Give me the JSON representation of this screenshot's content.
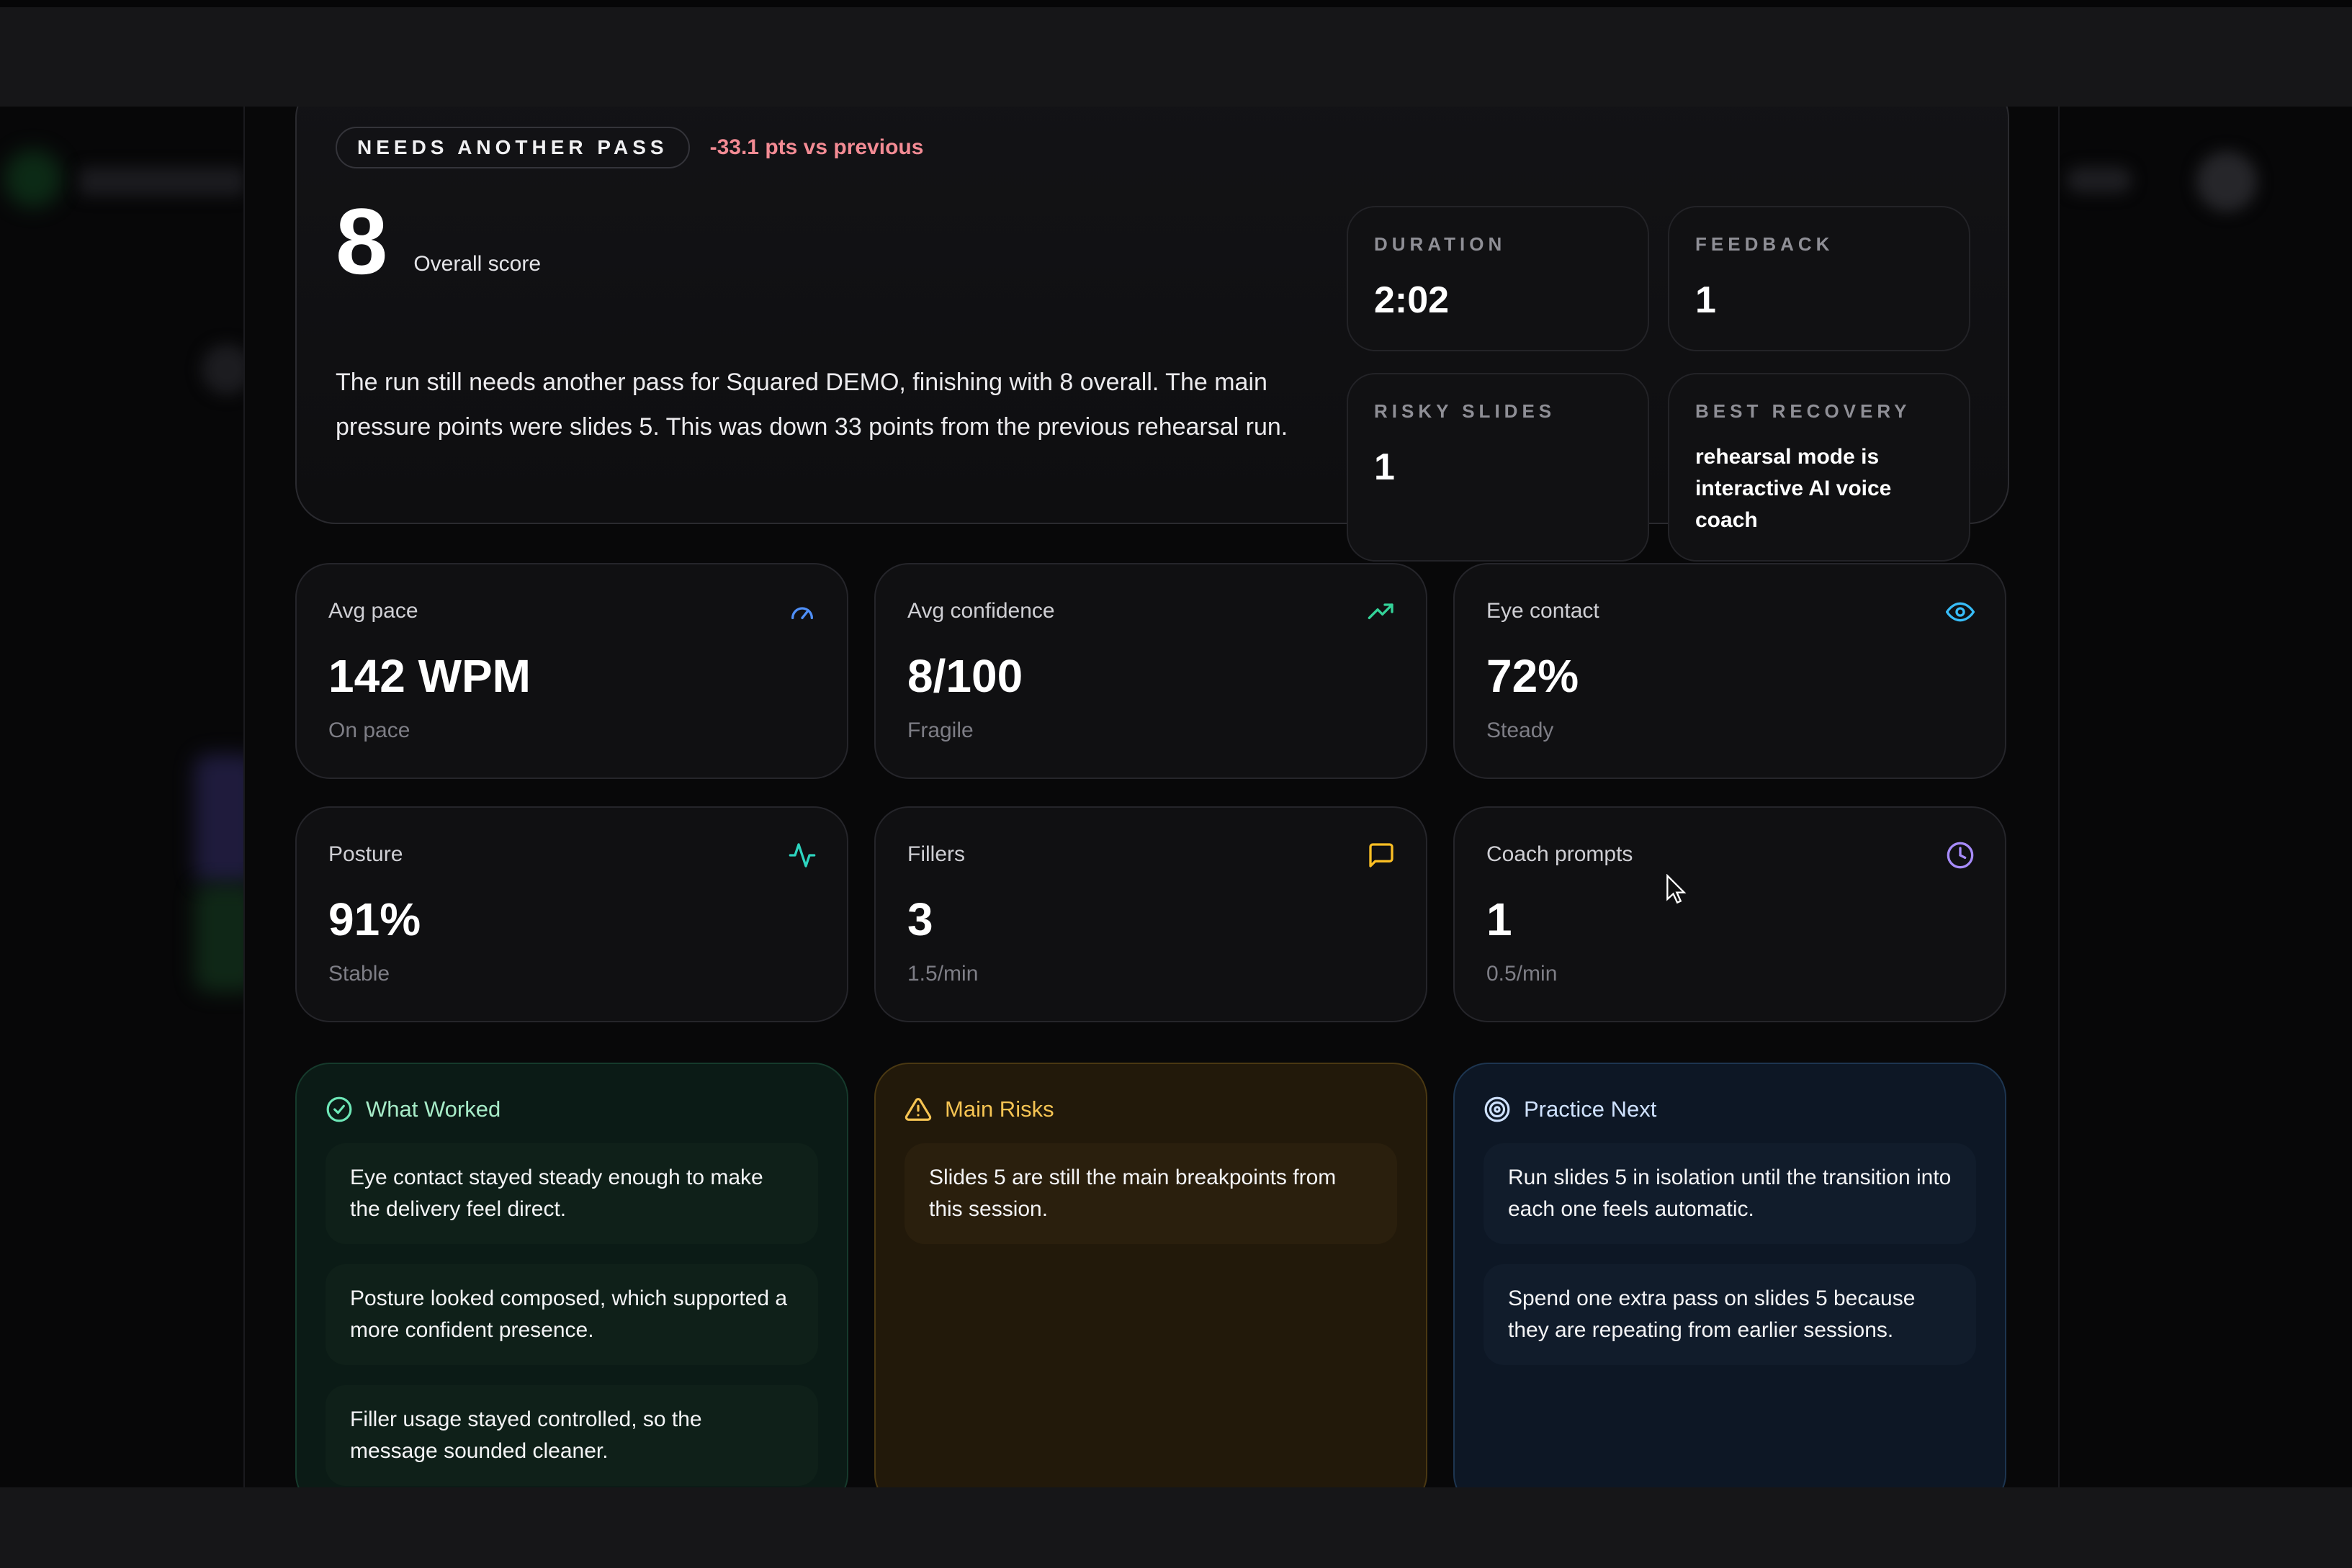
{
  "summary": {
    "status": "NEEDS ANOTHER PASS",
    "delta": "-33.1 pts vs previous",
    "score": "8",
    "score_label": "Overall score",
    "text": "The run still needs another pass for Squared DEMO, finishing with 8 overall. The main pressure points were slides 5. This was down 33 points from the previous rehearsal run.",
    "stats": [
      {
        "key": "DURATION",
        "value": "2:02"
      },
      {
        "key": "FEEDBACK",
        "value": "1"
      },
      {
        "key": "RISKY SLIDES",
        "value": "1"
      },
      {
        "key": "BEST RECOVERY",
        "value": "rehearsal mode is interactive AI voice coach"
      }
    ]
  },
  "metrics": [
    {
      "label": "Avg pace",
      "value": "142 WPM",
      "sub": "On pace",
      "icon": "gauge-icon",
      "color": "#4f8ff7"
    },
    {
      "label": "Avg confidence",
      "value": "8/100",
      "sub": "Fragile",
      "icon": "trending-up-icon",
      "color": "#34d399"
    },
    {
      "label": "Eye contact",
      "value": "72%",
      "sub": "Steady",
      "icon": "eye-icon",
      "color": "#38bdf8"
    },
    {
      "label": "Posture",
      "value": "91%",
      "sub": "Stable",
      "icon": "activity-icon",
      "color": "#2dd4bf"
    },
    {
      "label": "Fillers",
      "value": "3",
      "sub": "1.5/min",
      "icon": "message-square-icon",
      "color": "#fbbf24"
    },
    {
      "label": "Coach prompts",
      "value": "1",
      "sub": "0.5/min",
      "icon": "clock-icon",
      "color": "#a78bfa"
    }
  ],
  "what_worked": {
    "title": "What Worked",
    "items": [
      "Eye contact stayed steady enough to make the delivery feel direct.",
      "Posture looked composed, which supported a more confident presence.",
      "Filler usage stayed controlled, so the message sounded cleaner."
    ]
  },
  "main_risks": {
    "title": "Main Risks",
    "items": [
      "Slides 5 are still the main breakpoints from this session."
    ]
  },
  "practice_next": {
    "title": "Practice Next",
    "items": [
      "Run slides 5 in isolation until the transition into each one feels automatic.",
      "Spend one extra pass on slides 5 because they are repeating from earlier sessions."
    ]
  }
}
